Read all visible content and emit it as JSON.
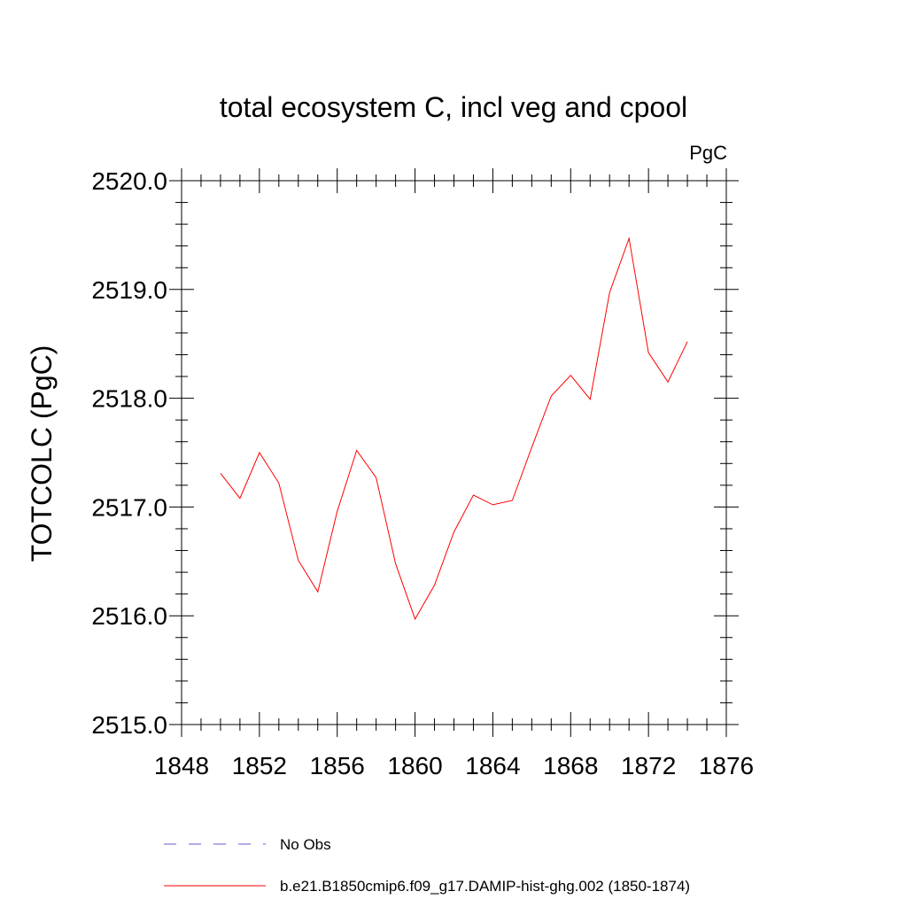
{
  "chart_data": {
    "type": "line",
    "title": "total ecosystem C, incl veg and cpool",
    "units_label": "PgC",
    "ylabel": "TOTCOLC  (PgC)",
    "xlabel": "",
    "xlim": [
      1848,
      1876
    ],
    "ylim": [
      2515.0,
      2520.0
    ],
    "x_ticks": [
      1848,
      1852,
      1856,
      1860,
      1864,
      1868,
      1872,
      1876
    ],
    "x_tick_labels": [
      "1848",
      "1852",
      "1856",
      "1860",
      "1864",
      "1868",
      "1872",
      "1876"
    ],
    "y_ticks": [
      2515.0,
      2516.0,
      2517.0,
      2518.0,
      2519.0,
      2520.0
    ],
    "y_tick_labels": [
      "2515.0",
      "2516.0",
      "2517.0",
      "2518.0",
      "2519.0",
      "2520.0"
    ],
    "grid": false,
    "legend_position": "bottom",
    "series": [
      {
        "name": "b.e21.B1850cmip6.f09_g17.DAMIP-hist-ghg.002 (1850-1874)",
        "color": "#ff0000",
        "style": "solid",
        "x": [
          1850,
          1851,
          1852,
          1853,
          1854,
          1855,
          1856,
          1857,
          1858,
          1859,
          1860,
          1861,
          1862,
          1863,
          1864,
          1865,
          1866,
          1867,
          1868,
          1869,
          1870,
          1871,
          1872,
          1873,
          1874
        ],
        "values": [
          2517.31,
          2517.08,
          2517.5,
          2517.22,
          2516.51,
          2516.22,
          2516.96,
          2517.52,
          2517.27,
          2516.48,
          2515.97,
          2516.28,
          2516.77,
          2517.11,
          2517.02,
          2517.06,
          2517.55,
          2518.02,
          2518.21,
          2517.99,
          2518.97,
          2519.47,
          2518.42,
          2518.15,
          2518.52
        ]
      }
    ],
    "legend": [
      {
        "label": "No Obs",
        "color": "#6a5acd",
        "style": "dashed"
      },
      {
        "label": "b.e21.B1850cmip6.f09_g17.DAMIP-hist-ghg.002 (1850-1874)",
        "color": "#ff0000",
        "style": "solid"
      }
    ]
  }
}
